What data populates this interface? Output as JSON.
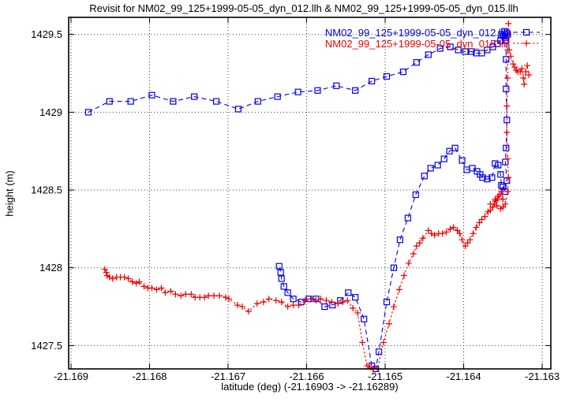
{
  "title": "Revisit for NM02_99_125+1999-05-05_dyn_012.llh & NM02_99_125+1999-05-05_dyn_015.llh",
  "x_axis": {
    "label": "latitude (deg) (-21.16903 -> -21.16289)",
    "tick_labels": [
      "-21.169",
      "-21.168",
      "-21.167",
      "-21.166",
      "-21.165",
      "-21.164",
      "-21.163"
    ]
  },
  "y_axis": {
    "label": "height (m)",
    "tick_labels": [
      "1429.5",
      "1429",
      "1428.5",
      "1428",
      "1427.5"
    ]
  },
  "chart_data": {
    "type": "line",
    "title": "Revisit for NM02_99_125+1999-05-05_dyn_012.llh & NM02_99_125+1999-05-05_dyn_015.llh",
    "xlabel": "latitude (deg) (-21.16903 -> -21.16289)",
    "ylabel": "height (m)",
    "xlim": [
      -21.16903,
      -21.16289
    ],
    "ylim": [
      1427.35,
      1429.61
    ],
    "grid": true,
    "grid_style": "dotted",
    "legend_position": "top-right-inside",
    "x_ticks": {
      "values": [
        -21.169,
        -21.168,
        -21.167,
        -21.166,
        -21.165,
        -21.164,
        -21.163
      ],
      "labels": [
        "-21.169",
        "-21.168",
        "-21.167",
        "-21.166",
        "-21.165",
        "-21.164",
        "-21.163"
      ]
    },
    "y_ticks": {
      "values": [
        1429.5,
        1429,
        1428.5,
        1428,
        1427.5
      ],
      "labels": [
        "1429.5",
        "1429",
        "1428.5",
        "1428",
        "1427.5"
      ]
    },
    "series": [
      {
        "name": "NM02_99_125+1999-05-05_dyn_012.llh",
        "color": "#0000ee",
        "marker": "square",
        "linestyle": "dashed",
        "points": [
          [
            -21.16878,
            1429.0
          ],
          [
            -21.16851,
            1429.07
          ],
          [
            -21.16824,
            1429.07
          ],
          [
            -21.16797,
            1429.11
          ],
          [
            -21.1677,
            1429.07
          ],
          [
            -21.16743,
            1429.1
          ],
          [
            -21.16715,
            1429.07
          ],
          [
            -21.16687,
            1429.02
          ],
          [
            -21.16662,
            1429.07
          ],
          [
            -21.16637,
            1429.1
          ],
          [
            -21.16611,
            1429.13
          ],
          [
            -21.16586,
            1429.14
          ],
          [
            -21.16562,
            1429.17
          ],
          [
            -21.16538,
            1429.14
          ],
          [
            -21.16517,
            1429.2
          ],
          [
            -21.16498,
            1429.23
          ],
          [
            -21.16477,
            1429.26
          ],
          [
            -21.1646,
            1429.32
          ],
          [
            -21.16445,
            1429.37
          ],
          [
            -21.1643,
            1429.41
          ],
          [
            -21.16417,
            1429.42
          ],
          [
            -21.16407,
            1429.4
          ],
          [
            -21.16398,
            1429.39
          ],
          [
            -21.1639,
            1429.39
          ],
          [
            -21.16384,
            1429.38
          ],
          [
            -21.16377,
            1429.38
          ],
          [
            -21.1637,
            1429.4
          ],
          [
            -21.16363,
            1429.42
          ],
          [
            -21.16357,
            1429.44
          ],
          [
            -21.16353,
            1429.46
          ],
          [
            -21.16349,
            1429.49
          ],
          [
            -21.16345,
            1429.51
          ],
          [
            -21.16348,
            1429.52
          ],
          [
            -21.16352,
            1429.5
          ],
          [
            -21.16347,
            1429.48
          ],
          [
            -21.16344,
            1429.5
          ],
          [
            -21.16346,
            1429.46
          ],
          [
            -21.16346,
            1429.34
          ],
          [
            -21.16346,
            1429.15
          ],
          [
            -21.16345,
            1428.95
          ],
          [
            -21.16346,
            1428.77
          ],
          [
            -21.16347,
            1428.68
          ],
          [
            -21.16345,
            1428.56
          ],
          [
            -21.16347,
            1428.49
          ],
          [
            -21.1635,
            1428.52
          ],
          [
            -21.16352,
            1428.53
          ],
          [
            -21.16353,
            1428.6
          ],
          [
            -21.16356,
            1428.66
          ],
          [
            -21.1636,
            1428.67
          ],
          [
            -21.16364,
            1428.58
          ],
          [
            -21.1637,
            1428.57
          ],
          [
            -21.16376,
            1428.58
          ],
          [
            -21.16379,
            1428.6
          ],
          [
            -21.16383,
            1428.62
          ],
          [
            -21.16389,
            1428.64
          ],
          [
            -21.16396,
            1428.63
          ],
          [
            -21.16402,
            1428.69
          ],
          [
            -21.16411,
            1428.77
          ],
          [
            -21.16418,
            1428.75
          ],
          [
            -21.16425,
            1428.7
          ],
          [
            -21.16433,
            1428.66
          ],
          [
            -21.16442,
            1428.64
          ],
          [
            -21.1645,
            1428.59
          ],
          [
            -21.16461,
            1428.47
          ],
          [
            -21.16471,
            1428.32
          ],
          [
            -21.16481,
            1428.18
          ],
          [
            -21.16489,
            1428.0
          ],
          [
            -21.16498,
            1427.78
          ],
          [
            -21.16508,
            1427.46
          ],
          [
            -21.16512,
            1427.35
          ],
          [
            -21.16517,
            1427.37
          ],
          [
            -21.16527,
            1427.67
          ],
          [
            -21.16538,
            1427.81
          ],
          [
            -21.16547,
            1427.84
          ],
          [
            -21.16557,
            1427.79
          ],
          [
            -21.16567,
            1427.76
          ],
          [
            -21.16577,
            1427.75
          ],
          [
            -21.16588,
            1427.8
          ],
          [
            -21.16597,
            1427.8
          ],
          [
            -21.16607,
            1427.78
          ],
          [
            -21.16617,
            1427.8
          ],
          [
            -21.16624,
            1427.84
          ],
          [
            -21.16629,
            1427.88
          ],
          [
            -21.16632,
            1427.93
          ],
          [
            -21.16633,
            1427.97
          ],
          [
            -21.16635,
            1428.01
          ]
        ]
      },
      {
        "name": "NM02_99_125+1999-05-05_dyn_015.llh",
        "color": "#ee0000",
        "marker": "plus",
        "linestyle": "dashed",
        "points": [
          [
            -21.16857,
            1427.99
          ],
          [
            -21.16855,
            1427.97
          ],
          [
            -21.16854,
            1427.95
          ],
          [
            -21.16851,
            1427.94
          ],
          [
            -21.16847,
            1427.93
          ],
          [
            -21.16842,
            1427.94
          ],
          [
            -21.16837,
            1427.94
          ],
          [
            -21.16832,
            1427.94
          ],
          [
            -21.16827,
            1427.93
          ],
          [
            -21.16822,
            1427.91
          ],
          [
            -21.16817,
            1427.9
          ],
          [
            -21.16813,
            1427.91
          ],
          [
            -21.16807,
            1427.88
          ],
          [
            -21.16802,
            1427.87
          ],
          [
            -21.16797,
            1427.87
          ],
          [
            -21.16791,
            1427.86
          ],
          [
            -21.16785,
            1427.87
          ],
          [
            -21.1678,
            1427.84
          ],
          [
            -21.16773,
            1427.85
          ],
          [
            -21.16767,
            1427.83
          ],
          [
            -21.1676,
            1427.82
          ],
          [
            -21.16754,
            1427.83
          ],
          [
            -21.16747,
            1427.83
          ],
          [
            -21.16742,
            1427.81
          ],
          [
            -21.16736,
            1427.81
          ],
          [
            -21.1673,
            1427.81
          ],
          [
            -21.16725,
            1427.82
          ],
          [
            -21.16718,
            1427.82
          ],
          [
            -21.16711,
            1427.82
          ],
          [
            -21.16703,
            1427.81
          ],
          [
            -21.16699,
            1427.8
          ],
          [
            -21.16688,
            1427.76
          ],
          [
            -21.16682,
            1427.75
          ],
          [
            -21.16674,
            1427.72
          ],
          [
            -21.16663,
            1427.77
          ],
          [
            -21.16655,
            1427.78
          ],
          [
            -21.16648,
            1427.8
          ],
          [
            -21.16639,
            1427.79
          ],
          [
            -21.16632,
            1427.78
          ],
          [
            -21.16624,
            1427.75
          ],
          [
            -21.16617,
            1427.76
          ],
          [
            -21.1661,
            1427.76
          ],
          [
            -21.16602,
            1427.79
          ],
          [
            -21.16595,
            1427.8
          ],
          [
            -21.16588,
            1427.79
          ],
          [
            -21.16582,
            1427.8
          ],
          [
            -21.16575,
            1427.79
          ],
          [
            -21.16568,
            1427.78
          ],
          [
            -21.1656,
            1427.77
          ],
          [
            -21.16554,
            1427.78
          ],
          [
            -21.16548,
            1427.79
          ],
          [
            -21.16541,
            1427.74
          ],
          [
            -21.16535,
            1427.71
          ],
          [
            -21.16529,
            1427.52
          ],
          [
            -21.16523,
            1427.37
          ],
          [
            -21.16518,
            1427.36
          ],
          [
            -21.16515,
            1427.35
          ],
          [
            -21.1651,
            1427.35
          ],
          [
            -21.16502,
            1427.52
          ],
          [
            -21.16495,
            1427.64
          ],
          [
            -21.16489,
            1427.75
          ],
          [
            -21.16482,
            1427.86
          ],
          [
            -21.16476,
            1427.95
          ],
          [
            -21.1647,
            1428.03
          ],
          [
            -21.16464,
            1428.09
          ],
          [
            -21.1646,
            1428.14
          ],
          [
            -21.16456,
            1428.16
          ],
          [
            -21.16452,
            1428.19
          ],
          [
            -21.16445,
            1428.24
          ],
          [
            -21.16441,
            1428.22
          ],
          [
            -21.16437,
            1428.21
          ],
          [
            -21.16432,
            1428.22
          ],
          [
            -21.16427,
            1428.22
          ],
          [
            -21.16422,
            1428.23
          ],
          [
            -21.16417,
            1428.25
          ],
          [
            -21.16413,
            1428.26
          ],
          [
            -21.16408,
            1428.24
          ],
          [
            -21.16405,
            1428.22
          ],
          [
            -21.16402,
            1428.18
          ],
          [
            -21.16398,
            1428.14
          ],
          [
            -21.16395,
            1428.16
          ],
          [
            -21.16392,
            1428.18
          ],
          [
            -21.16388,
            1428.22
          ],
          [
            -21.16384,
            1428.26
          ],
          [
            -21.1638,
            1428.29
          ],
          [
            -21.16377,
            1428.31
          ],
          [
            -21.16373,
            1428.33
          ],
          [
            -21.16369,
            1428.36
          ],
          [
            -21.16366,
            1428.37
          ],
          [
            -21.16363,
            1428.39
          ],
          [
            -21.16361,
            1428.41
          ],
          [
            -21.16359,
            1428.43
          ],
          [
            -21.16357,
            1428.44
          ],
          [
            -21.16354,
            1428.47
          ],
          [
            -21.16352,
            1428.49
          ],
          [
            -21.1635,
            1428.44
          ],
          [
            -21.16356,
            1428.46
          ],
          [
            -21.1636,
            1428.44
          ],
          [
            -21.16366,
            1428.41
          ],
          [
            -21.16358,
            1428.4
          ],
          [
            -21.16353,
            1428.38
          ],
          [
            -21.1635,
            1428.39
          ],
          [
            -21.16347,
            1428.41
          ],
          [
            -21.16344,
            1428.49
          ],
          [
            -21.16343,
            1428.58
          ],
          [
            -21.16344,
            1428.7
          ],
          [
            -21.16345,
            1428.87
          ],
          [
            -21.16345,
            1429.04
          ],
          [
            -21.16344,
            1429.22
          ],
          [
            -21.16344,
            1429.4
          ],
          [
            -21.16343,
            1429.57
          ],
          [
            -21.16342,
            1429.4
          ],
          [
            -21.1634,
            1429.36
          ],
          [
            -21.16337,
            1429.31
          ],
          [
            -21.16335,
            1429.29
          ],
          [
            -21.16333,
            1429.27
          ],
          [
            -21.16331,
            1429.26
          ],
          [
            -21.16328,
            1429.26
          ],
          [
            -21.16326,
            1429.28
          ],
          [
            -21.16324,
            1429.22
          ],
          [
            -21.16323,
            1429.18
          ],
          [
            -21.16321,
            1429.26
          ],
          [
            -21.16319,
            1429.3
          ],
          [
            -21.16317,
            1429.24
          ]
        ]
      }
    ]
  }
}
